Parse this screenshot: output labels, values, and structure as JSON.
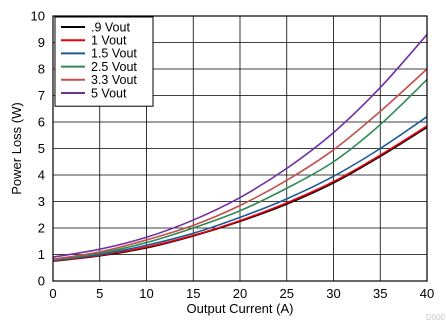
{
  "chart_data": {
    "type": "line",
    "xlabel": "Output Current (A)",
    "ylabel": "Power Loss (W)",
    "xlim": [
      0,
      40
    ],
    "ylim": [
      0,
      10
    ],
    "xticks": [
      0,
      5,
      10,
      15,
      20,
      25,
      30,
      35,
      40
    ],
    "yticks": [
      0,
      1,
      2,
      3,
      4,
      5,
      6,
      7,
      8,
      9,
      10
    ],
    "grid": true,
    "legend_position": "top-left",
    "x": [
      0,
      5,
      10,
      15,
      20,
      25,
      30,
      35,
      40
    ],
    "series": [
      {
        "name": ".9 Vout",
        "color": "#000000",
        "values": [
          0.75,
          0.95,
          1.25,
          1.7,
          2.25,
          2.9,
          3.7,
          4.7,
          5.8
        ]
      },
      {
        "name": "1 Vout",
        "color": "#e8000b",
        "values": [
          0.76,
          0.97,
          1.28,
          1.72,
          2.28,
          2.95,
          3.75,
          4.75,
          5.85
        ]
      },
      {
        "name": "1.5 Vout",
        "color": "#1f5a96",
        "values": [
          0.78,
          1.0,
          1.35,
          1.8,
          2.4,
          3.1,
          3.95,
          5.0,
          6.2
        ]
      },
      {
        "name": "2.5 Vout",
        "color": "#2e8b57",
        "values": [
          0.8,
          1.05,
          1.45,
          2.0,
          2.65,
          3.5,
          4.5,
          5.9,
          7.6
        ]
      },
      {
        "name": "3.3 Vout",
        "color": "#c0504d",
        "values": [
          0.82,
          1.1,
          1.55,
          2.1,
          2.85,
          3.8,
          4.95,
          6.4,
          8.0
        ]
      },
      {
        "name": "5 Vout",
        "color": "#7030a0",
        "values": [
          0.9,
          1.2,
          1.65,
          2.3,
          3.15,
          4.25,
          5.6,
          7.3,
          9.3
        ]
      }
    ]
  },
  "watermark": "D000"
}
